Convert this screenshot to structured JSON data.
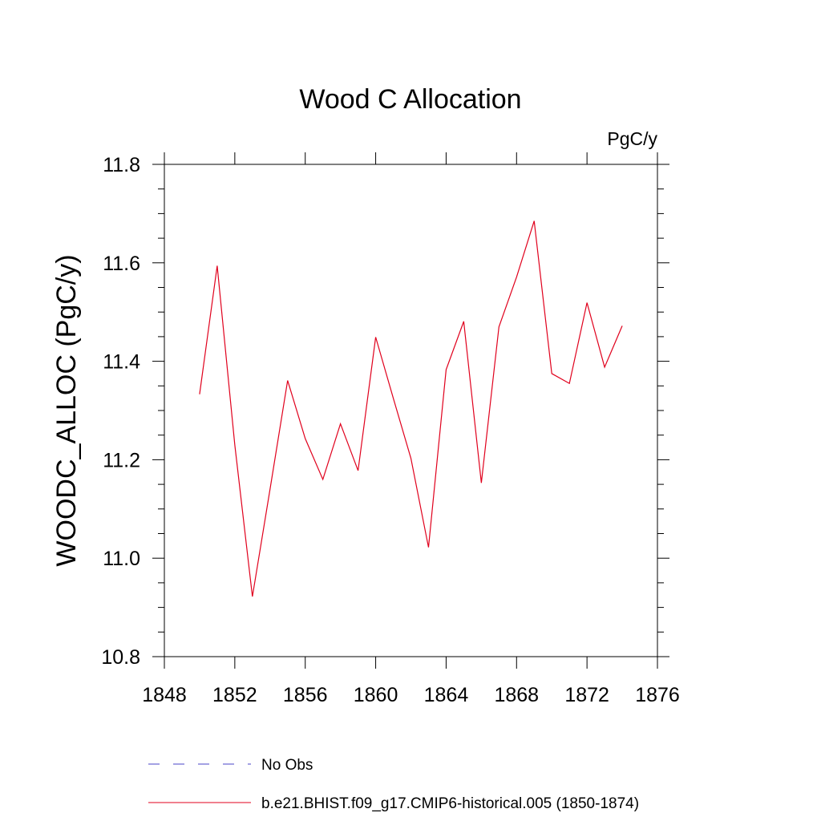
{
  "chart_data": {
    "type": "line",
    "title": "Wood C Allocation",
    "units_label": "PgC/y",
    "ylabel": "WOODC_ALLOC  (PgC/y)",
    "xlabel": "",
    "xlim": [
      1848,
      1876
    ],
    "ylim": [
      10.8,
      11.8
    ],
    "x_ticks": [
      1848,
      1852,
      1856,
      1860,
      1864,
      1868,
      1872,
      1876
    ],
    "y_ticks": [
      "10.8",
      "11.0",
      "11.2",
      "11.4",
      "11.6",
      "11.8"
    ],
    "grid": false,
    "legend_position": "bottom",
    "colors": {
      "model": "#e0001c",
      "obs": "#4a45c8"
    },
    "series": [
      {
        "name": "b.e21.BHIST.f09_g17.CMIP6-historical.005 (1850-1874)",
        "x": [
          1850,
          1851,
          1852,
          1853,
          1854,
          1855,
          1856,
          1857,
          1858,
          1859,
          1860,
          1861,
          1862,
          1863,
          1864,
          1865,
          1866,
          1867,
          1868,
          1869,
          1870,
          1871,
          1872,
          1873,
          1874
        ],
        "values": [
          11.333,
          11.594,
          11.23,
          10.922,
          11.14,
          11.361,
          11.243,
          11.16,
          11.273,
          11.178,
          11.449,
          11.325,
          11.203,
          11.022,
          11.383,
          11.481,
          11.153,
          11.47,
          11.571,
          11.685,
          11.375,
          11.355,
          11.519,
          11.388,
          11.472
        ]
      }
    ],
    "legend": [
      {
        "label": "No Obs",
        "style": "dashed"
      },
      {
        "label": "b.e21.BHIST.f09_g17.CMIP6-historical.005 (1850-1874)",
        "style": "solid"
      }
    ]
  }
}
